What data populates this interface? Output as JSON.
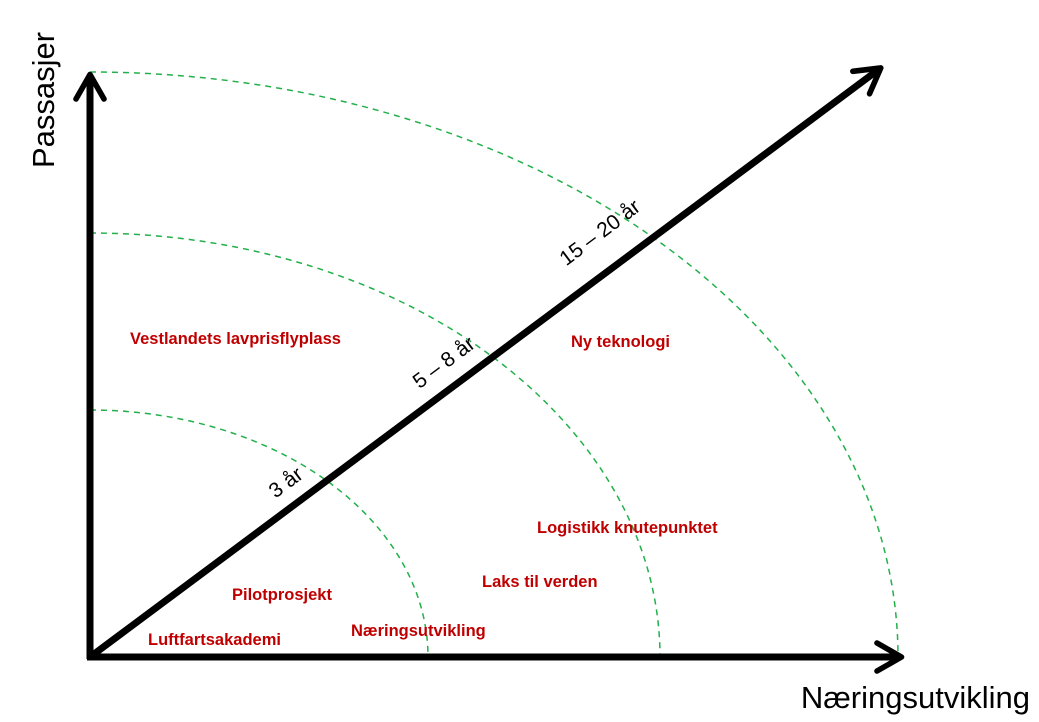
{
  "axes": {
    "y_label": "Passasjer",
    "x_label": "Næringsutvikling"
  },
  "horizons": [
    "3 år",
    "5 – 8 år",
    "15 – 20 år"
  ],
  "projects": [
    "Vestlandets lavprisflyplass",
    "Ny teknologi",
    "Logistikk knutepunktet",
    "Laks til verden",
    "Pilotprosjekt",
    "Næringsutvikling",
    "Luftfartsakademi"
  ]
}
